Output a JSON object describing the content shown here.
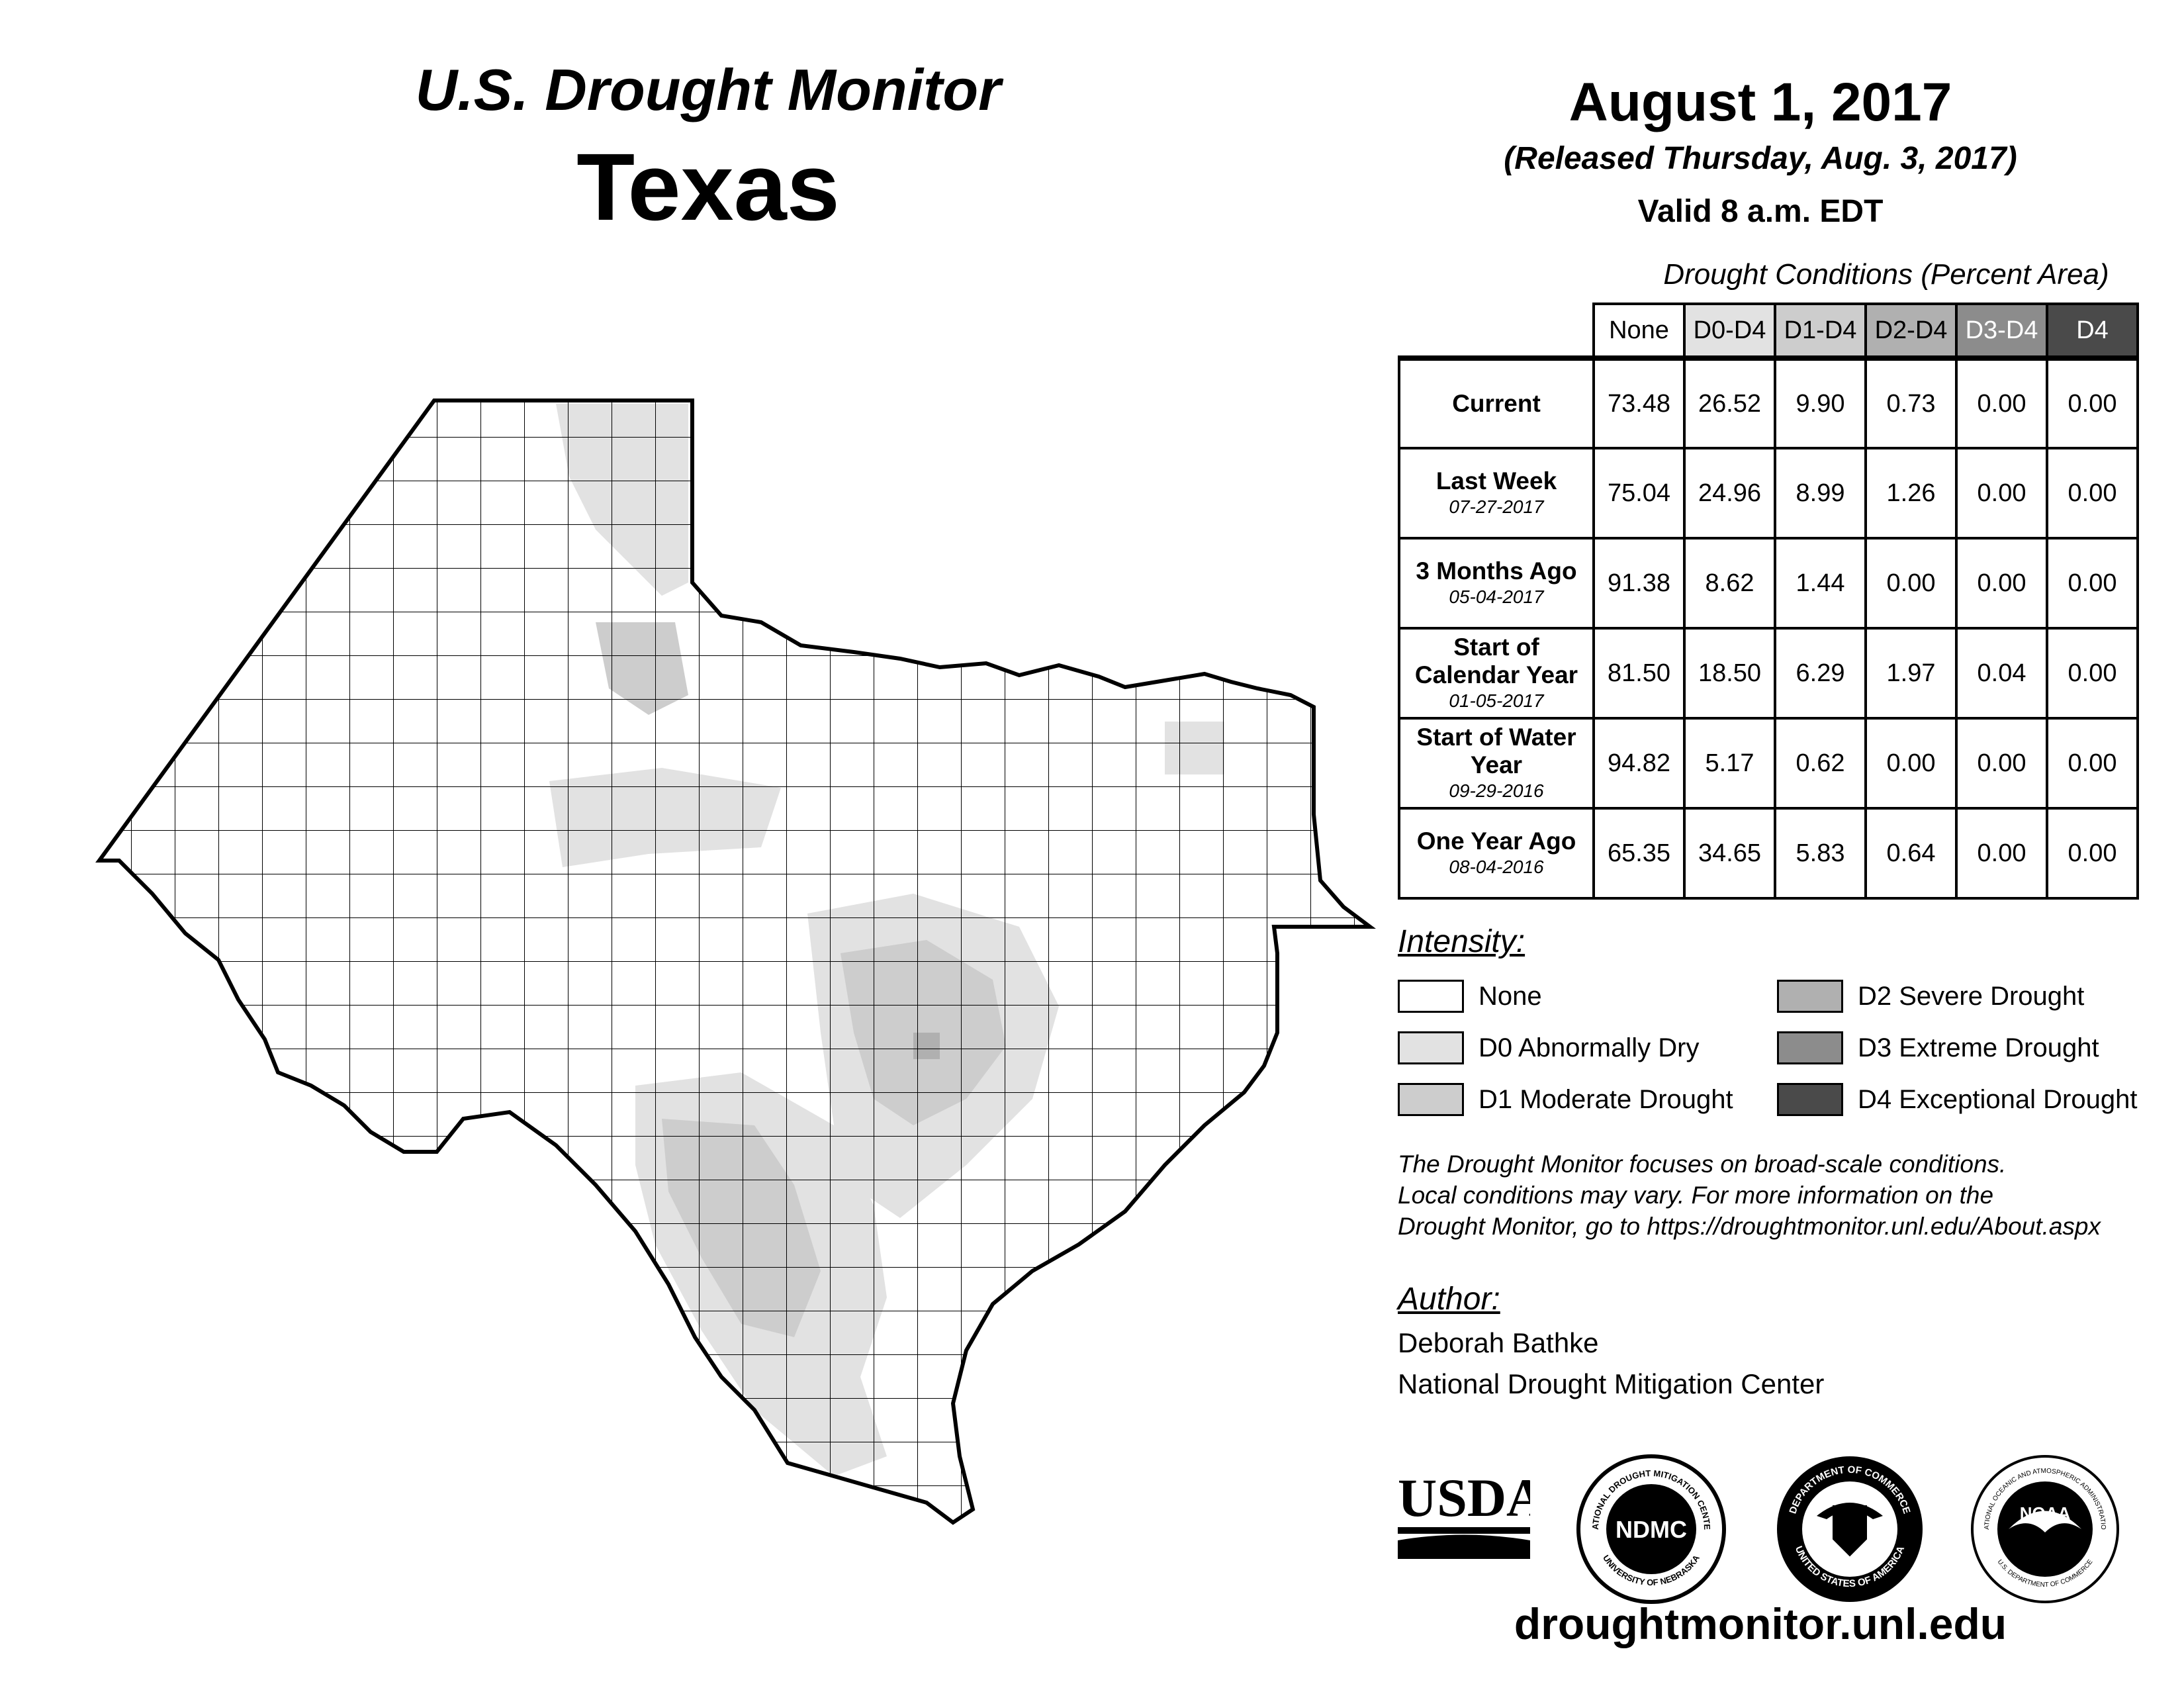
{
  "header": {
    "title": "U.S. Drought Monitor",
    "state": "Texas",
    "date": "August 1, 2017",
    "released": "(Released Thursday, Aug. 3, 2017)",
    "valid": "Valid 8 a.m. EDT"
  },
  "table": {
    "caption": "Drought Conditions (Percent Area)",
    "columns": [
      "None",
      "D0-D4",
      "D1-D4",
      "D2-D4",
      "D3-D4",
      "D4"
    ],
    "rows": [
      {
        "label": "Current",
        "date": "",
        "values": [
          "73.48",
          "26.52",
          "9.90",
          "0.73",
          "0.00",
          "0.00"
        ]
      },
      {
        "label": "Last Week",
        "date": "07-27-2017",
        "values": [
          "75.04",
          "24.96",
          "8.99",
          "1.26",
          "0.00",
          "0.00"
        ]
      },
      {
        "label": "3 Months Ago",
        "date": "05-04-2017",
        "values": [
          "91.38",
          "8.62",
          "1.44",
          "0.00",
          "0.00",
          "0.00"
        ]
      },
      {
        "label": "Start of Calendar Year",
        "date": "01-05-2017",
        "values": [
          "81.50",
          "18.50",
          "6.29",
          "1.97",
          "0.04",
          "0.00"
        ]
      },
      {
        "label": "Start of Water Year",
        "date": "09-29-2016",
        "values": [
          "94.82",
          "5.17",
          "0.62",
          "0.00",
          "0.00",
          "0.00"
        ]
      },
      {
        "label": "One Year Ago",
        "date": "08-04-2016",
        "values": [
          "65.35",
          "34.65",
          "5.83",
          "0.64",
          "0.00",
          "0.00"
        ]
      }
    ]
  },
  "legend": {
    "title": "Intensity:",
    "items": [
      {
        "label": "None",
        "color": "#ffffff"
      },
      {
        "label": "D0 Abnormally Dry",
        "color": "#e2e2e2"
      },
      {
        "label": "D1 Moderate Drought",
        "color": "#cdcdcd"
      },
      {
        "label": "D2 Severe Drought",
        "color": "#b0b0b0"
      },
      {
        "label": "D3 Extreme Drought",
        "color": "#8c8c8c"
      },
      {
        "label": "D4 Exceptional Drought",
        "color": "#4a4a4a"
      }
    ]
  },
  "note": {
    "line1": "The Drought Monitor focuses on broad-scale conditions.",
    "line2": "Local conditions may vary. For more information on the",
    "line3": "Drought Monitor, go to https://droughtmonitor.unl.edu/About.aspx"
  },
  "author": {
    "title": "Author:",
    "name": "Deborah Bathke",
    "org": "National Drought Mitigation Center"
  },
  "logos": {
    "usda": "USDA",
    "ndmc": "NDMC",
    "ndmc_ring_top": "NATIONAL DROUGHT MITIGATION CENTER",
    "ndmc_ring_bottom": "UNIVERSITY OF NEBRASKA",
    "doc_ring_top": "DEPARTMENT OF COMMERCE",
    "doc_ring_bottom": "UNITED STATES OF AMERICA",
    "noaa": "NOAA",
    "noaa_ring_top": "NATIONAL OCEANIC AND ATMOSPHERIC ADMINISTRATION",
    "noaa_ring_bottom": "U.S. DEPARTMENT OF COMMERCE"
  },
  "website": "droughtmonitor.unl.edu"
}
